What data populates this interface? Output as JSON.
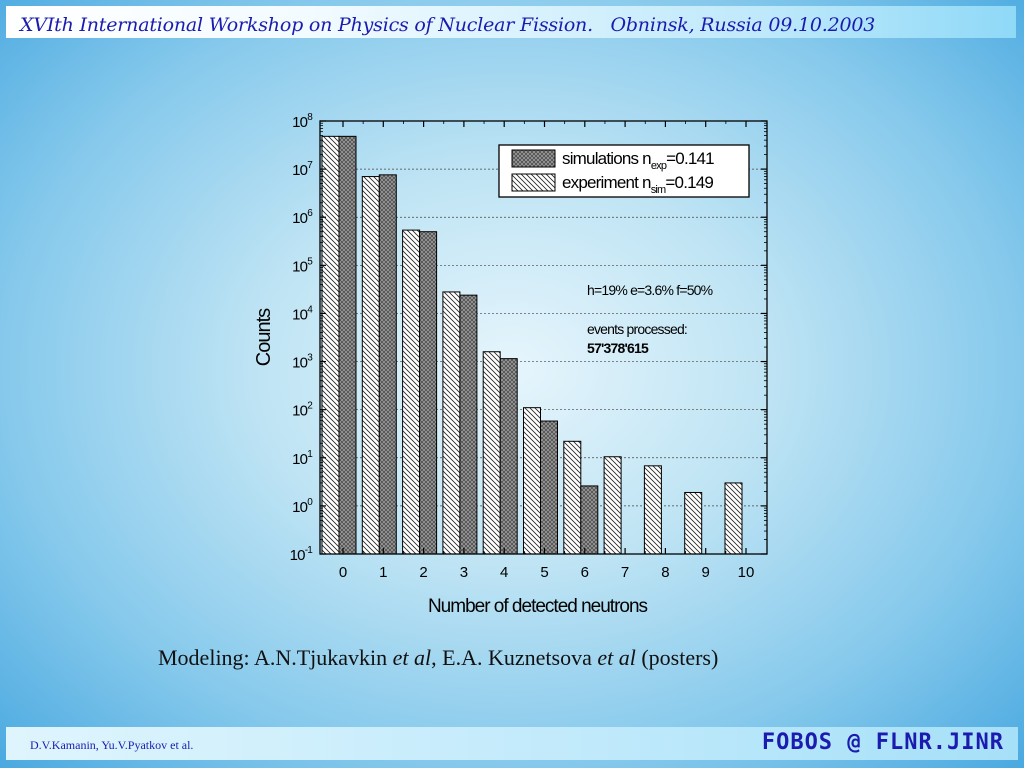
{
  "header": {
    "title": "XVIth International Workshop on Physics of Nuclear Fission.",
    "place_date": "Obninsk, Russia 09.10.2003"
  },
  "footer": {
    "authors": "D.V.Kamanin, Yu.V.Pyatkov et al.",
    "brand": "FOBOS @ FLNR.JINR"
  },
  "caption": {
    "prefix": "Modeling: A.N.Tjukavkin ",
    "etal1": "et al",
    "mid": ", E.A. Kuznetsova ",
    "etal2": "et al",
    "suffix": " (posters)"
  },
  "chart_data": {
    "type": "bar",
    "xlabel": "Number of detected neutrons",
    "ylabel": "Counts",
    "yscale": "log",
    "ylim": [
      0.1,
      100000000
    ],
    "categories": [
      "0",
      "1",
      "2",
      "3",
      "4",
      "5",
      "6",
      "7",
      "8",
      "9",
      "10"
    ],
    "y_ticks": [
      {
        "base": "10",
        "exp": "-1"
      },
      {
        "base": "10",
        "exp": "0"
      },
      {
        "base": "10",
        "exp": "1"
      },
      {
        "base": "10",
        "exp": "2"
      },
      {
        "base": "10",
        "exp": "3"
      },
      {
        "base": "10",
        "exp": "4"
      },
      {
        "base": "10",
        "exp": "5"
      },
      {
        "base": "10",
        "exp": "6"
      },
      {
        "base": "10",
        "exp": "7"
      },
      {
        "base": "10",
        "exp": "8"
      }
    ],
    "grid": "horizontal dotted",
    "legend_position": "top-right",
    "series": [
      {
        "legend_label": "simulations n",
        "legend_sub": "exp",
        "legend_value": "=0.141",
        "pattern": "crosshatch",
        "color": "#8a8a8a",
        "values": [
          48000000,
          7600000,
          500000,
          24000,
          1150,
          58,
          2.6,
          null,
          null,
          null,
          null
        ]
      },
      {
        "legend_label": "experiment n",
        "legend_sub": "sim",
        "legend_value": "=0.149",
        "pattern": "diagonal",
        "color": "#ffffff",
        "values": [
          48000000,
          7000000,
          540000,
          28000,
          1600,
          110,
          22,
          10.5,
          6.8,
          1.9,
          3.0
        ]
      }
    ],
    "annotations": {
      "params": "h=19% e=3.6% f=50%",
      "events_label": "events processed:",
      "events_value": "57'378'615"
    }
  }
}
